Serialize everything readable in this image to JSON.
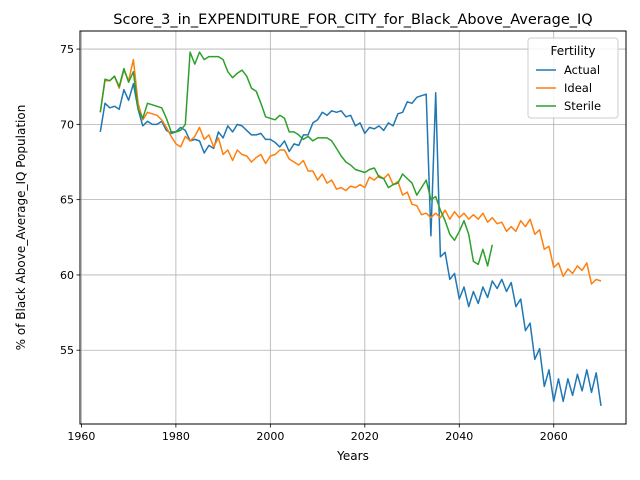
{
  "chart_data": {
    "type": "line",
    "title": "Score_3_in_EXPENDITURE_FOR_CITY_for_Black_Above_Average_IQ",
    "xlabel": "Years",
    "ylabel": "% of Black Above_Average_IQ Population",
    "xlim": [
      1959.7,
      2075.3
    ],
    "ylim": [
      50.1,
      76.2
    ],
    "xticks": [
      1960,
      1980,
      2000,
      2020,
      2040,
      2060
    ],
    "yticks": [
      55,
      60,
      65,
      70,
      75
    ],
    "grid": true,
    "legend": {
      "title": "Fertility",
      "placement": "top-right"
    },
    "series": [
      {
        "name": "Actual",
        "color": "#1f77b4",
        "points": [
          [
            1964,
            69.5
          ],
          [
            1965,
            71.4
          ],
          [
            1966,
            71.1
          ],
          [
            1967,
            71.2
          ],
          [
            1968,
            71.0
          ],
          [
            1969,
            72.3
          ],
          [
            1970,
            71.6
          ],
          [
            1971,
            72.7
          ],
          [
            1972,
            71.0
          ],
          [
            1973,
            69.9
          ],
          [
            1974,
            70.2
          ],
          [
            1975,
            70.0
          ],
          [
            1976,
            70.0
          ],
          [
            1977,
            70.2
          ],
          [
            1978,
            69.6
          ],
          [
            1979,
            69.4
          ],
          [
            1980,
            69.5
          ],
          [
            1981,
            69.8
          ],
          [
            1982,
            69.6
          ],
          [
            1983,
            68.9
          ],
          [
            1984,
            69.0
          ],
          [
            1985,
            68.9
          ],
          [
            1986,
            68.1
          ],
          [
            1987,
            68.6
          ],
          [
            1988,
            68.4
          ],
          [
            1989,
            69.5
          ],
          [
            1990,
            69.1
          ],
          [
            1991,
            69.9
          ],
          [
            1992,
            69.5
          ],
          [
            1993,
            70.0
          ],
          [
            1994,
            69.9
          ],
          [
            1995,
            69.6
          ],
          [
            1996,
            69.3
          ],
          [
            1997,
            69.3
          ],
          [
            1998,
            69.4
          ],
          [
            1999,
            69.0
          ],
          [
            2000,
            69.0
          ],
          [
            2001,
            68.8
          ],
          [
            2002,
            68.5
          ],
          [
            2003,
            68.9
          ],
          [
            2004,
            68.2
          ],
          [
            2005,
            68.7
          ],
          [
            2006,
            68.6
          ],
          [
            2007,
            69.3
          ],
          [
            2008,
            69.3
          ],
          [
            2009,
            70.1
          ],
          [
            2010,
            70.3
          ],
          [
            2011,
            70.8
          ],
          [
            2012,
            70.6
          ],
          [
            2013,
            70.9
          ],
          [
            2014,
            70.8
          ],
          [
            2015,
            70.9
          ],
          [
            2016,
            70.5
          ],
          [
            2017,
            70.6
          ],
          [
            2018,
            69.9
          ],
          [
            2019,
            70.1
          ],
          [
            2020,
            69.4
          ],
          [
            2021,
            69.8
          ],
          [
            2022,
            69.7
          ],
          [
            2023,
            69.9
          ],
          [
            2024,
            69.6
          ],
          [
            2025,
            70.1
          ],
          [
            2026,
            69.9
          ],
          [
            2027,
            70.7
          ],
          [
            2028,
            70.8
          ],
          [
            2029,
            71.5
          ],
          [
            2030,
            71.4
          ],
          [
            2031,
            71.8
          ],
          [
            2032,
            71.9
          ],
          [
            2033,
            72.0
          ],
          [
            2034,
            62.6
          ],
          [
            2035,
            72.1
          ],
          [
            2036,
            61.2
          ],
          [
            2037,
            61.5
          ],
          [
            2038,
            59.7
          ],
          [
            2039,
            60.1
          ],
          [
            2040,
            58.4
          ],
          [
            2041,
            59.2
          ],
          [
            2042,
            57.9
          ],
          [
            2043,
            58.9
          ],
          [
            2044,
            58.1
          ],
          [
            2045,
            59.2
          ],
          [
            2046,
            58.5
          ],
          [
            2047,
            59.6
          ],
          [
            2048,
            59.1
          ],
          [
            2049,
            59.7
          ],
          [
            2050,
            58.9
          ],
          [
            2051,
            59.5
          ],
          [
            2052,
            57.9
          ],
          [
            2053,
            58.4
          ],
          [
            2054,
            56.3
          ],
          [
            2055,
            56.8
          ],
          [
            2056,
            54.4
          ],
          [
            2057,
            55.1
          ],
          [
            2058,
            52.6
          ],
          [
            2059,
            53.7
          ],
          [
            2060,
            51.6
          ],
          [
            2061,
            53.1
          ],
          [
            2062,
            51.6
          ],
          [
            2063,
            53.1
          ],
          [
            2064,
            52.0
          ],
          [
            2065,
            53.4
          ],
          [
            2066,
            52.3
          ],
          [
            2067,
            53.7
          ],
          [
            2068,
            52.2
          ],
          [
            2069,
            53.5
          ],
          [
            2070,
            51.3
          ]
        ]
      },
      {
        "name": "Ideal",
        "color": "#ff7f0e",
        "points": [
          [
            1964,
            70.8
          ],
          [
            1965,
            72.9
          ],
          [
            1966,
            72.9
          ],
          [
            1967,
            73.2
          ],
          [
            1968,
            72.4
          ],
          [
            1969,
            73.6
          ],
          [
            1970,
            72.9
          ],
          [
            1971,
            74.3
          ],
          [
            1972,
            71.4
          ],
          [
            1973,
            70.3
          ],
          [
            1974,
            70.8
          ],
          [
            1975,
            70.7
          ],
          [
            1976,
            70.6
          ],
          [
            1977,
            70.3
          ],
          [
            1978,
            69.8
          ],
          [
            1979,
            69.2
          ],
          [
            1980,
            68.7
          ],
          [
            1981,
            68.5
          ],
          [
            1982,
            69.2
          ],
          [
            1983,
            68.9
          ],
          [
            1984,
            69.2
          ],
          [
            1985,
            69.8
          ],
          [
            1986,
            69.0
          ],
          [
            1987,
            69.3
          ],
          [
            1988,
            68.5
          ],
          [
            1989,
            69.1
          ],
          [
            1990,
            68.0
          ],
          [
            1991,
            68.3
          ],
          [
            1992,
            67.6
          ],
          [
            1993,
            68.3
          ],
          [
            1994,
            68.0
          ],
          [
            1995,
            67.9
          ],
          [
            1996,
            67.5
          ],
          [
            1997,
            67.8
          ],
          [
            1998,
            68.0
          ],
          [
            1999,
            67.4
          ],
          [
            2000,
            67.9
          ],
          [
            2001,
            68.0
          ],
          [
            2002,
            68.3
          ],
          [
            2003,
            68.3
          ],
          [
            2004,
            67.7
          ],
          [
            2005,
            67.5
          ],
          [
            2006,
            67.3
          ],
          [
            2007,
            67.6
          ],
          [
            2008,
            66.9
          ],
          [
            2009,
            66.9
          ],
          [
            2010,
            66.3
          ],
          [
            2011,
            66.7
          ],
          [
            2012,
            66.1
          ],
          [
            2013,
            66.3
          ],
          [
            2014,
            65.7
          ],
          [
            2015,
            65.8
          ],
          [
            2016,
            65.6
          ],
          [
            2017,
            65.9
          ],
          [
            2018,
            65.8
          ],
          [
            2019,
            66.0
          ],
          [
            2020,
            65.8
          ],
          [
            2021,
            66.5
          ],
          [
            2022,
            66.3
          ],
          [
            2023,
            66.6
          ],
          [
            2024,
            66.4
          ],
          [
            2025,
            66.7
          ],
          [
            2026,
            66.0
          ],
          [
            2027,
            66.2
          ],
          [
            2028,
            65.3
          ],
          [
            2029,
            65.5
          ],
          [
            2030,
            64.7
          ],
          [
            2031,
            64.6
          ],
          [
            2032,
            64.0
          ],
          [
            2033,
            64.1
          ],
          [
            2034,
            63.8
          ],
          [
            2035,
            64.1
          ],
          [
            2036,
            63.8
          ],
          [
            2037,
            64.3
          ],
          [
            2038,
            63.7
          ],
          [
            2039,
            64.2
          ],
          [
            2040,
            63.8
          ],
          [
            2041,
            64.1
          ],
          [
            2042,
            63.7
          ],
          [
            2043,
            64.0
          ],
          [
            2044,
            63.7
          ],
          [
            2045,
            64.1
          ],
          [
            2046,
            63.5
          ],
          [
            2047,
            63.8
          ],
          [
            2048,
            63.4
          ],
          [
            2049,
            63.5
          ],
          [
            2050,
            62.9
          ],
          [
            2051,
            63.2
          ],
          [
            2052,
            62.9
          ],
          [
            2053,
            63.6
          ],
          [
            2054,
            63.2
          ],
          [
            2055,
            63.7
          ],
          [
            2056,
            62.7
          ],
          [
            2057,
            63.0
          ],
          [
            2058,
            61.7
          ],
          [
            2059,
            61.9
          ],
          [
            2060,
            60.5
          ],
          [
            2061,
            60.8
          ],
          [
            2062,
            59.9
          ],
          [
            2063,
            60.4
          ],
          [
            2064,
            60.1
          ],
          [
            2065,
            60.6
          ],
          [
            2066,
            60.3
          ],
          [
            2067,
            60.8
          ],
          [
            2068,
            59.4
          ],
          [
            2069,
            59.7
          ],
          [
            2070,
            59.6
          ]
        ]
      },
      {
        "name": "Sterile",
        "color": "#2ca02c",
        "points": [
          [
            1964,
            70.8
          ],
          [
            1965,
            73.0
          ],
          [
            1966,
            72.9
          ],
          [
            1967,
            73.2
          ],
          [
            1968,
            72.5
          ],
          [
            1969,
            73.7
          ],
          [
            1970,
            72.8
          ],
          [
            1971,
            73.5
          ],
          [
            1972,
            71.0
          ],
          [
            1973,
            70.4
          ],
          [
            1974,
            71.4
          ],
          [
            1975,
            71.3
          ],
          [
            1976,
            71.2
          ],
          [
            1977,
            71.1
          ],
          [
            1978,
            70.4
          ],
          [
            1979,
            69.5
          ],
          [
            1980,
            69.5
          ],
          [
            1981,
            69.6
          ],
          [
            1982,
            70.0
          ],
          [
            1983,
            74.8
          ],
          [
            1984,
            74.0
          ],
          [
            1985,
            74.8
          ],
          [
            1986,
            74.3
          ],
          [
            1987,
            74.5
          ],
          [
            1988,
            74.5
          ],
          [
            1989,
            74.5
          ],
          [
            1990,
            74.3
          ],
          [
            1991,
            73.5
          ],
          [
            1992,
            73.1
          ],
          [
            1993,
            73.4
          ],
          [
            1994,
            73.6
          ],
          [
            1995,
            73.2
          ],
          [
            1996,
            72.4
          ],
          [
            1997,
            72.2
          ],
          [
            1998,
            71.4
          ],
          [
            1999,
            70.5
          ],
          [
            2000,
            70.4
          ],
          [
            2001,
            70.3
          ],
          [
            2002,
            70.6
          ],
          [
            2003,
            70.4
          ],
          [
            2004,
            69.5
          ],
          [
            2005,
            69.5
          ],
          [
            2006,
            69.3
          ],
          [
            2007,
            69.0
          ],
          [
            2008,
            69.2
          ],
          [
            2009,
            68.9
          ],
          [
            2010,
            69.1
          ],
          [
            2011,
            69.1
          ],
          [
            2012,
            69.1
          ],
          [
            2013,
            68.9
          ],
          [
            2014,
            68.4
          ],
          [
            2015,
            67.9
          ],
          [
            2016,
            67.5
          ],
          [
            2017,
            67.3
          ],
          [
            2018,
            67.0
          ],
          [
            2019,
            66.9
          ],
          [
            2020,
            66.8
          ],
          [
            2021,
            67.0
          ],
          [
            2022,
            67.1
          ],
          [
            2023,
            66.5
          ],
          [
            2024,
            66.4
          ],
          [
            2025,
            65.8
          ],
          [
            2026,
            66.0
          ],
          [
            2027,
            66.1
          ],
          [
            2028,
            66.7
          ],
          [
            2029,
            66.4
          ],
          [
            2030,
            66.1
          ],
          [
            2031,
            65.3
          ],
          [
            2032,
            65.8
          ],
          [
            2033,
            66.3
          ],
          [
            2034,
            65.0
          ],
          [
            2035,
            65.2
          ],
          [
            2036,
            64.3
          ],
          [
            2037,
            63.6
          ],
          [
            2038,
            62.7
          ],
          [
            2039,
            62.3
          ],
          [
            2040,
            62.9
          ],
          [
            2041,
            63.6
          ],
          [
            2042,
            62.7
          ],
          [
            2043,
            60.9
          ],
          [
            2044,
            60.7
          ],
          [
            2045,
            61.7
          ],
          [
            2046,
            60.6
          ],
          [
            2047,
            62.0
          ]
        ]
      }
    ]
  }
}
